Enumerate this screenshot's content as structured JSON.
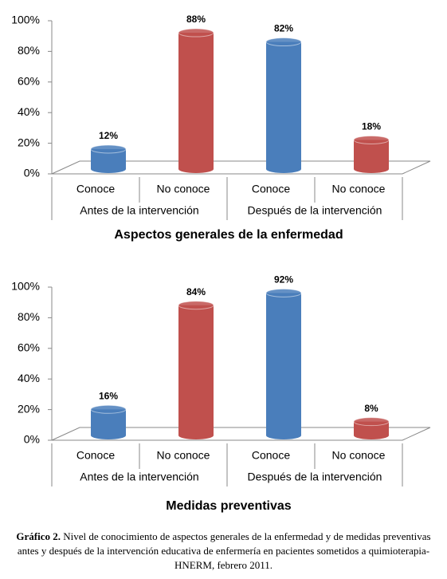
{
  "chart_data": [
    {
      "type": "bar",
      "title": "Aspectos generales de la enfermedad",
      "categories": [
        "Conoce",
        "No conoce",
        "Conoce",
        "No conoce"
      ],
      "groups": [
        "Antes de la intervención",
        "Después de la intervención"
      ],
      "values": [
        12,
        88,
        82,
        18
      ],
      "value_labels": [
        "12%",
        "88%",
        "82%",
        "18%"
      ],
      "colors": [
        "#4a7ebb",
        "#c0504d",
        "#4a7ebb",
        "#c0504d"
      ],
      "ylim": [
        0,
        100
      ],
      "yticks": [
        {
          "value": 0,
          "label": "0%"
        },
        {
          "value": 20,
          "label": "20%"
        },
        {
          "value": 40,
          "label": "40%"
        },
        {
          "value": 60,
          "label": "60%"
        },
        {
          "value": 80,
          "label": "80%"
        },
        {
          "value": 100,
          "label": "100%"
        }
      ]
    },
    {
      "type": "bar",
      "title": "Medidas preventivas",
      "categories": [
        "Conoce",
        "No conoce",
        "Conoce",
        "No conoce"
      ],
      "groups": [
        "Antes de la intervención",
        "Después de la intervención"
      ],
      "values": [
        16,
        84,
        92,
        8
      ],
      "value_labels": [
        "16%",
        "84%",
        "92%",
        "8%"
      ],
      "colors": [
        "#4a7ebb",
        "#c0504d",
        "#4a7ebb",
        "#c0504d"
      ],
      "ylim": [
        0,
        100
      ],
      "yticks": [
        {
          "value": 0,
          "label": "0%"
        },
        {
          "value": 20,
          "label": "20%"
        },
        {
          "value": 40,
          "label": "40%"
        },
        {
          "value": 60,
          "label": "60%"
        },
        {
          "value": 80,
          "label": "80%"
        },
        {
          "value": 100,
          "label": "100%"
        }
      ]
    }
  ],
  "caption": {
    "label": "Gráfico 2.",
    "text": "Nivel de conocimiento de aspectos generales de la enfermedad y de medidas preventivas antes y después de la intervención educativa de enfermería en pacientes sometidos a quimioterapia-HNERM, febrero 2011."
  }
}
